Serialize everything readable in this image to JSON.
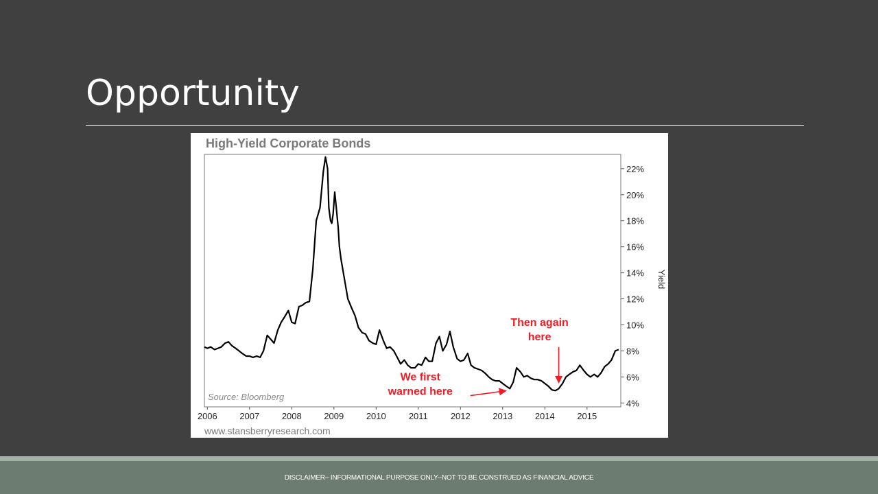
{
  "slide": {
    "title": "Opportunity",
    "disclaimer": "DISCLAIMER– INFORMATIONAL PURPOSE ONLY--NOT TO BE CONSTRUED AS FINANCIAL ADVICE"
  },
  "chart_data": {
    "type": "line",
    "title": "High-Yield Corporate Bonds",
    "xlabel": "",
    "ylabel": "Yield",
    "xlim": [
      2005.93,
      2015.8
    ],
    "ylim": [
      3.7,
      23.1
    ],
    "x_ticks": [
      "2006",
      "2007",
      "2008",
      "2009",
      "2010",
      "2011",
      "2012",
      "2013",
      "2014",
      "2015"
    ],
    "y_ticks": [
      "4%",
      "6%",
      "8%",
      "10%",
      "12%",
      "14%",
      "16%",
      "18%",
      "20%",
      "22%"
    ],
    "y_tick_values": [
      4,
      6,
      8,
      10,
      12,
      14,
      16,
      18,
      20,
      22
    ],
    "y_axis_side": "right",
    "grid": false,
    "source": "Source: Bloomberg",
    "watermark": "www.stansberryresearch.com",
    "line_color": "#000000",
    "annotation_color": "#ee1c25",
    "annotations": [
      {
        "lines": [
          "We first",
          "warned here"
        ],
        "x": 2013.13,
        "y": 5.2
      },
      {
        "lines": [
          "Then again",
          "here"
        ],
        "x": 2014.33,
        "y": 5.5
      }
    ],
    "series": [
      {
        "x": [
          2005.93,
          2006.0,
          2006.08,
          2006.17,
          2006.25,
          2006.33,
          2006.42,
          2006.5,
          2006.58,
          2006.67,
          2006.75,
          2006.83,
          2006.92,
          2007.0,
          2007.08,
          2007.17,
          2007.25,
          2007.33,
          2007.42,
          2007.5,
          2007.58,
          2007.67,
          2007.75,
          2007.83,
          2007.92,
          2008.0,
          2008.08,
          2008.17,
          2008.25,
          2008.33,
          2008.42,
          2008.5,
          2008.58,
          2008.67,
          2008.75,
          2008.8,
          2008.85,
          2008.88,
          2008.92,
          2008.95,
          2008.98,
          2009.02,
          2009.05,
          2009.1,
          2009.13,
          2009.17,
          2009.25,
          2009.33,
          2009.42,
          2009.5,
          2009.58,
          2009.67,
          2009.75,
          2009.83,
          2009.92,
          2010.0,
          2010.08,
          2010.17,
          2010.25,
          2010.33,
          2010.42,
          2010.5,
          2010.58,
          2010.67,
          2010.75,
          2010.83,
          2010.92,
          2011.0,
          2011.08,
          2011.17,
          2011.25,
          2011.33,
          2011.42,
          2011.5,
          2011.58,
          2011.67,
          2011.75,
          2011.83,
          2011.92,
          2012.0,
          2012.08,
          2012.17,
          2012.25,
          2012.33,
          2012.42,
          2012.5,
          2012.58,
          2012.67,
          2012.75,
          2012.83,
          2012.92,
          2013.0,
          2013.08,
          2013.17,
          2013.25,
          2013.33,
          2013.42,
          2013.5,
          2013.58,
          2013.67,
          2013.75,
          2013.83,
          2013.92,
          2014.0,
          2014.08,
          2014.17,
          2014.25,
          2014.33,
          2014.42,
          2014.5,
          2014.58,
          2014.67,
          2014.75,
          2014.83,
          2014.92,
          2015.0,
          2015.08,
          2015.17,
          2015.25,
          2015.33,
          2015.42,
          2015.5,
          2015.58,
          2015.67,
          2015.75
        ],
        "values": [
          8.3,
          8.2,
          8.3,
          8.1,
          8.2,
          8.3,
          8.6,
          8.7,
          8.4,
          8.2,
          8.0,
          7.8,
          7.6,
          7.6,
          7.5,
          7.6,
          7.5,
          8.0,
          9.2,
          8.9,
          8.6,
          9.6,
          10.2,
          10.6,
          11.1,
          10.2,
          10.1,
          11.4,
          11.5,
          11.7,
          11.8,
          14.3,
          18.0,
          19.0,
          21.8,
          22.9,
          22.0,
          19.0,
          18.0,
          17.8,
          18.5,
          20.2,
          19.2,
          17.5,
          16.0,
          15.0,
          13.5,
          12.0,
          11.3,
          10.7,
          9.8,
          9.4,
          9.3,
          8.8,
          8.6,
          8.5,
          9.6,
          8.8,
          8.2,
          8.3,
          8.0,
          7.5,
          7.0,
          7.3,
          6.9,
          6.7,
          6.7,
          7.0,
          6.9,
          7.5,
          7.2,
          7.2,
          8.6,
          9.1,
          8.0,
          8.5,
          9.5,
          8.3,
          7.4,
          7.2,
          7.3,
          7.8,
          6.9,
          6.7,
          6.6,
          6.5,
          6.3,
          6.0,
          5.8,
          5.7,
          5.7,
          5.5,
          5.3,
          5.1,
          5.6,
          6.7,
          6.4,
          6.0,
          6.1,
          5.9,
          5.8,
          5.8,
          5.7,
          5.5,
          5.3,
          5.0,
          4.95,
          5.1,
          5.5,
          6.0,
          6.2,
          6.4,
          6.5,
          6.9,
          6.5,
          6.2,
          6.0,
          6.2,
          6.0,
          6.3,
          6.8,
          7.0,
          7.3,
          8.0,
          8.1
        ]
      }
    ]
  }
}
